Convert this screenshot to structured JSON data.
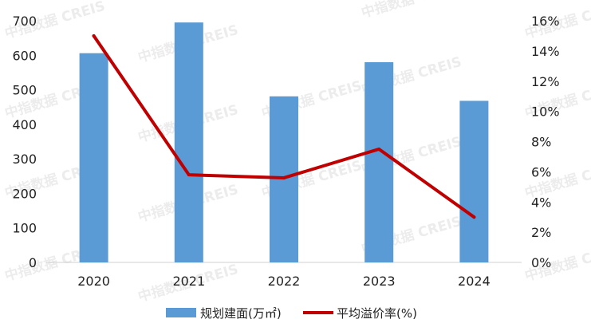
{
  "watermark": "中指数据 CREIS",
  "chart_data": {
    "type": "bar+line",
    "categories": [
      "2020",
      "2021",
      "2022",
      "2023",
      "2024"
    ],
    "series": [
      {
        "name": "规划建面(万㎡)",
        "type": "bar",
        "axis": "left",
        "color": "#5b9bd5",
        "values": [
          606,
          695,
          481,
          580,
          468
        ]
      },
      {
        "name": "平均溢价率(%)",
        "type": "line",
        "axis": "right",
        "color": "#c00000",
        "values": [
          15.0,
          5.8,
          5.6,
          7.5,
          3.0
        ]
      }
    ],
    "y_left": {
      "lim": [
        0,
        700
      ],
      "ticks": [
        "0",
        "100",
        "200",
        "300",
        "400",
        "500",
        "600",
        "700"
      ]
    },
    "y_right": {
      "lim": [
        0,
        16
      ],
      "ticks": [
        "0%",
        "2%",
        "4%",
        "6%",
        "8%",
        "10%",
        "12%",
        "14%",
        "16%"
      ]
    },
    "grid": false,
    "legend": "bottom-center"
  }
}
